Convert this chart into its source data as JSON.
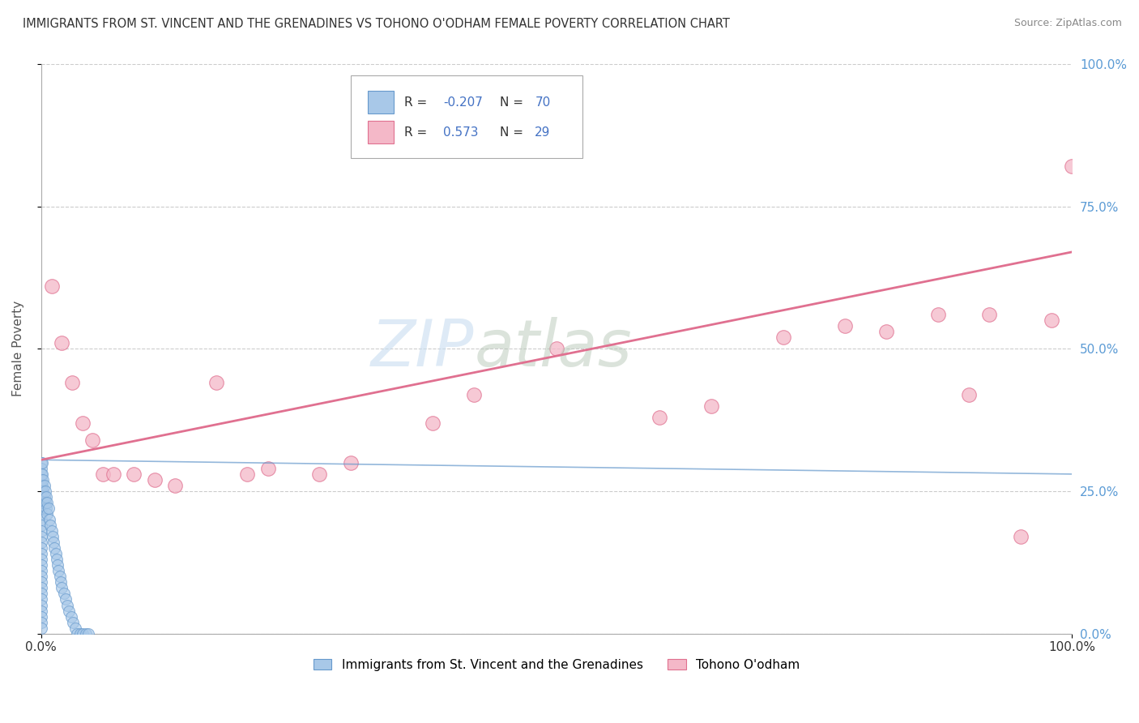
{
  "title": "IMMIGRANTS FROM ST. VINCENT AND THE GRENADINES VS TOHONO O'ODHAM FEMALE POVERTY CORRELATION CHART",
  "source": "Source: ZipAtlas.com",
  "ylabel": "Female Poverty",
  "xlim": [
    0,
    1.0
  ],
  "ylim": [
    0,
    1.0
  ],
  "ytick_positions": [
    0.0,
    0.25,
    0.5,
    0.75,
    1.0
  ],
  "grid_color": "#cccccc",
  "background_color": "#ffffff",
  "series1_label": "Immigrants from St. Vincent and the Grenadines",
  "series1_R": "-0.207",
  "series1_N": "70",
  "series1_color": "#a8c8e8",
  "series1_edge_color": "#6699cc",
  "series2_label": "Tohono O'odham",
  "series2_R": "0.573",
  "series2_N": "29",
  "series2_color": "#f4b8c8",
  "series2_edge_color": "#e07090",
  "series2_line_color": "#e07090",
  "blue_scatter_x": [
    0.0,
    0.0,
    0.0,
    0.0,
    0.0,
    0.0,
    0.0,
    0.0,
    0.0,
    0.0,
    0.0,
    0.0,
    0.0,
    0.0,
    0.0,
    0.0,
    0.0,
    0.0,
    0.0,
    0.0,
    0.0,
    0.0,
    0.0,
    0.0,
    0.0,
    0.0,
    0.0,
    0.0,
    0.0,
    0.0,
    0.001,
    0.001,
    0.001,
    0.002,
    0.002,
    0.002,
    0.003,
    0.003,
    0.004,
    0.004,
    0.005,
    0.005,
    0.006,
    0.006,
    0.007,
    0.008,
    0.009,
    0.01,
    0.011,
    0.012,
    0.013,
    0.014,
    0.015,
    0.016,
    0.017,
    0.018,
    0.019,
    0.02,
    0.022,
    0.024,
    0.025,
    0.027,
    0.029,
    0.031,
    0.033,
    0.035,
    0.038,
    0.04,
    0.043,
    0.046
  ],
  "blue_scatter_y": [
    0.3,
    0.29,
    0.28,
    0.27,
    0.26,
    0.25,
    0.24,
    0.23,
    0.22,
    0.21,
    0.2,
    0.19,
    0.18,
    0.17,
    0.16,
    0.15,
    0.14,
    0.13,
    0.12,
    0.11,
    0.1,
    0.09,
    0.08,
    0.07,
    0.06,
    0.05,
    0.04,
    0.03,
    0.02,
    0.01,
    0.3,
    0.28,
    0.26,
    0.27,
    0.25,
    0.23,
    0.26,
    0.24,
    0.25,
    0.23,
    0.24,
    0.22,
    0.23,
    0.21,
    0.22,
    0.2,
    0.19,
    0.18,
    0.17,
    0.16,
    0.15,
    0.14,
    0.13,
    0.12,
    0.11,
    0.1,
    0.09,
    0.08,
    0.07,
    0.06,
    0.05,
    0.04,
    0.03,
    0.02,
    0.01,
    0.0,
    0.0,
    0.0,
    0.0,
    0.0
  ],
  "pink_scatter_x": [
    0.01,
    0.02,
    0.03,
    0.04,
    0.05,
    0.06,
    0.07,
    0.09,
    0.11,
    0.13,
    0.17,
    0.2,
    0.22,
    0.27,
    0.3,
    0.38,
    0.42,
    0.5,
    0.6,
    0.65,
    0.72,
    0.78,
    0.82,
    0.87,
    0.9,
    0.92,
    0.95,
    0.98,
    1.0
  ],
  "pink_scatter_y": [
    0.61,
    0.51,
    0.44,
    0.37,
    0.34,
    0.28,
    0.28,
    0.28,
    0.27,
    0.26,
    0.44,
    0.28,
    0.29,
    0.28,
    0.3,
    0.37,
    0.42,
    0.5,
    0.38,
    0.4,
    0.52,
    0.54,
    0.53,
    0.56,
    0.42,
    0.56,
    0.17,
    0.55,
    0.82
  ],
  "blue_trend_x": [
    0.0,
    1.0
  ],
  "blue_trend_y": [
    0.305,
    0.28
  ],
  "pink_trend_x": [
    0.0,
    1.0
  ],
  "pink_trend_y": [
    0.305,
    0.67
  ],
  "legend_color": "#4472c4"
}
